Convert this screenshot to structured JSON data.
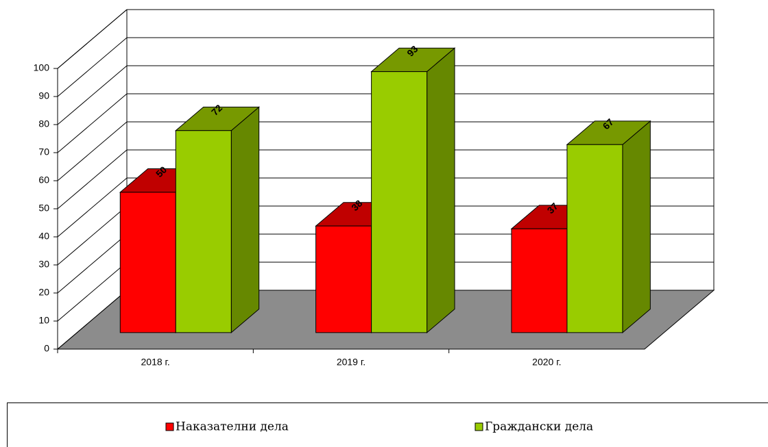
{
  "chart_data": {
    "type": "bar3d",
    "categories": [
      "2018 г.",
      "2019 г.",
      "2020 г."
    ],
    "series": [
      {
        "name": "Наказателни дела",
        "color": "#ff0000",
        "values": [
          50,
          38,
          37
        ]
      },
      {
        "name": "Граждански дела",
        "color": "#99cc00",
        "values": [
          72,
          93,
          67
        ]
      }
    ],
    "ylim": [
      0,
      100
    ],
    "yticks": [
      0,
      10,
      20,
      30,
      40,
      50,
      60,
      70,
      80,
      90,
      100
    ],
    "grid": true,
    "legend": "bottom"
  }
}
